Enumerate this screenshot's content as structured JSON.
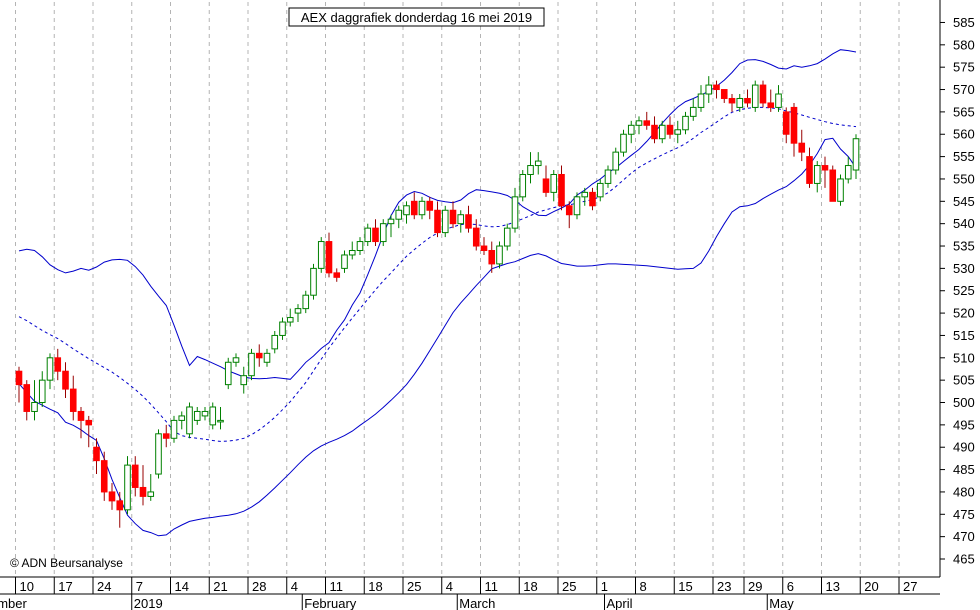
{
  "chart_data": {
    "type": "candlestick",
    "title": "AEX daggrafiek donderdag 16 mei 2019",
    "copyright": "© ADN Beursanalyse",
    "ylim": [
      462,
      588
    ],
    "y_ticks": [
      465,
      470,
      475,
      480,
      485,
      490,
      495,
      500,
      505,
      510,
      515,
      520,
      525,
      530,
      535,
      540,
      545,
      550,
      555,
      560,
      565,
      570,
      575,
      580,
      585
    ],
    "x_ticks": [
      {
        "label": "10",
        "day": 0
      },
      {
        "label": "17",
        "day": 5
      },
      {
        "label": "24",
        "day": 10
      },
      {
        "label": "7",
        "day": 15
      },
      {
        "label": "14",
        "day": 20
      },
      {
        "label": "21",
        "day": 25
      },
      {
        "label": "28",
        "day": 30
      },
      {
        "label": "4",
        "day": 35
      },
      {
        "label": "11",
        "day": 40
      },
      {
        "label": "18",
        "day": 45
      },
      {
        "label": "25",
        "day": 50
      },
      {
        "label": "4",
        "day": 55
      },
      {
        "label": "11",
        "day": 60
      },
      {
        "label": "18",
        "day": 65
      },
      {
        "label": "25",
        "day": 70
      },
      {
        "label": "1",
        "day": 75
      },
      {
        "label": "8",
        "day": 80
      },
      {
        "label": "15",
        "day": 85
      },
      {
        "label": "23",
        "day": 90
      },
      {
        "label": "29",
        "day": 94
      },
      {
        "label": "6",
        "day": 99
      },
      {
        "label": "13",
        "day": 104
      },
      {
        "label": "20",
        "day": 109
      },
      {
        "label": "27",
        "day": 114
      }
    ],
    "month_labels": [
      {
        "label": "ember",
        "day": 0
      },
      {
        "label": "2019",
        "day": 15
      },
      {
        "label": "February",
        "day": 37
      },
      {
        "label": "March",
        "day": 57
      },
      {
        "label": "April",
        "day": 76
      },
      {
        "label": "May",
        "day": 97
      }
    ],
    "up_color": "#008000",
    "down_color": "#ff0000",
    "band_color": "#0000cc",
    "grid_color": "#b4b4b4",
    "candles": [
      [
        507,
        508,
        500,
        504
      ],
      [
        504,
        505,
        496,
        498
      ],
      [
        498,
        505,
        496,
        500
      ],
      [
        500,
        507,
        499,
        505
      ],
      [
        505,
        511,
        503,
        510
      ],
      [
        510,
        512,
        505,
        507
      ],
      [
        507,
        509,
        501,
        503
      ],
      [
        503,
        506,
        496,
        498
      ],
      [
        498,
        499,
        492,
        496
      ],
      [
        496,
        497,
        490,
        495
      ],
      [
        490,
        492,
        484,
        487
      ],
      [
        487,
        489,
        478,
        480
      ],
      [
        480,
        482,
        476,
        478
      ],
      [
        478,
        480,
        472,
        476
      ],
      [
        476,
        488,
        475,
        486
      ],
      [
        486,
        488,
        479,
        481
      ],
      [
        481,
        486,
        477,
        479
      ],
      [
        479,
        484,
        478,
        480
      ],
      [
        484,
        494,
        483,
        493
      ],
      [
        493,
        495,
        490,
        492
      ],
      [
        492,
        497,
        491,
        496
      ],
      [
        496,
        498,
        494,
        497
      ],
      [
        493,
        500,
        492,
        499
      ],
      [
        496,
        499,
        495,
        498
      ],
      [
        497,
        499,
        496,
        498
      ],
      [
        495,
        500,
        494,
        499
      ],
      [
        496,
        499,
        494,
        496
      ],
      [
        504,
        510,
        503,
        509
      ],
      [
        509,
        511,
        508,
        510
      ],
      [
        504,
        508,
        502,
        506
      ],
      [
        506,
        512,
        505,
        511
      ],
      [
        511,
        513,
        508,
        510
      ],
      [
        509,
        512,
        508,
        511
      ],
      [
        512,
        516,
        511,
        515
      ],
      [
        515,
        519,
        514,
        518
      ],
      [
        518,
        521,
        517,
        519
      ],
      [
        520,
        522,
        518,
        521
      ],
      [
        521,
        525,
        520,
        524
      ],
      [
        524,
        531,
        523,
        530
      ],
      [
        530,
        537,
        529,
        536
      ],
      [
        536,
        538,
        528,
        529
      ],
      [
        529,
        530,
        527,
        528
      ],
      [
        530,
        534,
        529,
        533
      ],
      [
        533,
        536,
        532,
        534
      ],
      [
        534,
        537,
        533,
        536
      ],
      [
        536,
        540,
        535,
        539
      ],
      [
        539,
        541,
        535,
        536
      ],
      [
        536,
        541,
        535,
        540
      ],
      [
        540,
        542,
        537,
        541
      ],
      [
        541,
        544,
        539,
        543
      ],
      [
        542,
        545,
        540,
        544
      ],
      [
        545,
        547,
        541,
        542
      ],
      [
        542,
        546,
        541,
        545
      ],
      [
        545,
        546,
        541,
        543
      ],
      [
        543,
        545,
        537,
        538
      ],
      [
        538,
        544,
        537,
        543
      ],
      [
        543,
        545,
        539,
        540
      ],
      [
        540,
        543,
        538,
        542
      ],
      [
        542,
        544,
        538,
        539
      ],
      [
        539,
        541,
        534,
        535
      ],
      [
        535,
        537,
        533,
        534
      ],
      [
        534,
        536,
        529,
        531
      ],
      [
        531,
        536,
        530,
        535
      ],
      [
        535,
        540,
        534,
        539
      ],
      [
        539,
        548,
        538,
        546
      ],
      [
        546,
        552,
        545,
        551
      ],
      [
        551,
        556,
        549,
        553
      ],
      [
        553,
        556,
        551,
        554
      ],
      [
        550,
        553,
        546,
        547
      ],
      [
        547,
        552,
        545,
        551
      ],
      [
        551,
        553,
        543,
        544
      ],
      [
        544,
        545,
        539,
        542
      ],
      [
        542,
        547,
        541,
        546
      ],
      [
        546,
        548,
        544,
        547
      ],
      [
        547,
        548,
        543,
        544
      ],
      [
        546,
        550,
        545,
        549
      ],
      [
        549,
        553,
        548,
        552
      ],
      [
        552,
        557,
        551,
        556
      ],
      [
        556,
        561,
        555,
        560
      ],
      [
        560,
        563,
        558,
        562
      ],
      [
        562,
        564,
        560,
        563
      ],
      [
        563,
        565,
        561,
        562
      ],
      [
        562,
        564,
        558,
        559
      ],
      [
        559,
        563,
        558,
        562
      ],
      [
        562,
        564,
        559,
        560
      ],
      [
        560,
        563,
        558,
        561
      ],
      [
        561,
        565,
        560,
        564
      ],
      [
        564,
        568,
        563,
        566
      ],
      [
        566,
        571,
        565,
        569
      ],
      [
        569,
        573,
        567,
        571
      ],
      [
        571,
        572,
        568,
        570
      ],
      [
        570,
        570,
        567,
        568
      ],
      [
        568,
        569,
        565,
        567
      ],
      [
        566,
        569,
        565,
        568
      ],
      [
        568,
        570,
        566,
        567
      ],
      [
        566,
        572,
        565,
        571
      ],
      [
        571,
        572,
        566,
        567
      ],
      [
        567,
        570,
        565,
        566
      ],
      [
        566,
        571,
        565,
        569
      ],
      [
        565,
        566,
        558,
        560
      ],
      [
        566,
        567,
        555,
        558
      ],
      [
        558,
        561,
        554,
        556
      ],
      [
        555,
        557,
        548,
        549
      ],
      [
        549,
        554,
        547,
        553
      ],
      [
        553,
        555,
        548,
        552
      ],
      [
        552,
        553,
        545,
        545
      ],
      [
        545,
        551,
        544,
        550
      ],
      [
        550,
        555,
        549,
        553
      ],
      [
        552,
        560,
        550,
        559
      ]
    ],
    "sma20": [
      519.2,
      518.3,
      517.2,
      516.1,
      515.2,
      514.3,
      513.2,
      512.0,
      510.9,
      509.8,
      508.8,
      507.8,
      506.8,
      505.6,
      504.3,
      502.9,
      501.4,
      499.6,
      497.7,
      495.7,
      493.5,
      492.6,
      492.2,
      492.0,
      491.8,
      491.5,
      491.3,
      491.4,
      491.6,
      492.0,
      492.8,
      493.9,
      495.2,
      496.7,
      498.4,
      500.2,
      502.3,
      504.5,
      507.1,
      509.7,
      512.2,
      514.5,
      516.7,
      518.9,
      521.0,
      523.1,
      525.2,
      527.2,
      529.0,
      530.9,
      532.7,
      534.2,
      535.6,
      536.9,
      537.9,
      538.7,
      539.3,
      539.8,
      540.0,
      539.8,
      539.5,
      539.3,
      539.4,
      539.8,
      540.4,
      541.1,
      541.8,
      542.6,
      543.1,
      543.6,
      544.0,
      544.2,
      544.6,
      545.0,
      545.4,
      546.0,
      546.9,
      548.3,
      549.8,
      551.3,
      552.6,
      553.6,
      554.5,
      555.4,
      556.2,
      557.0,
      557.9,
      559.1,
      560.4,
      561.5,
      562.7,
      563.9,
      564.9,
      565.5,
      565.8,
      566.0,
      566.0,
      565.9,
      565.7,
      565.2,
      564.8,
      564.3,
      563.8,
      563.3,
      562.8,
      562.4,
      562.1,
      561.9,
      561.7
    ],
    "upper_band": [
      533.9,
      534.3,
      534.0,
      532.6,
      530.8,
      529.7,
      529.0,
      529.4,
      530.0,
      529.6,
      530.3,
      531.4,
      531.9,
      532.0,
      531.8,
      530.4,
      528.5,
      526.0,
      523.8,
      521.7,
      517.3,
      512.6,
      508.3,
      510.3,
      509.6,
      508.8,
      508.0,
      507.1,
      506.4,
      505.7,
      505.4,
      505.3,
      505.4,
      505.6,
      505.4,
      505.2,
      507.0,
      509.0,
      510.4,
      512.1,
      513.4,
      516.2,
      518.5,
      521.8,
      524.5,
      528.6,
      532.9,
      537.6,
      541.8,
      544.8,
      546.4,
      547.2,
      546.8,
      545.9,
      545.2,
      544.9,
      544.7,
      545.3,
      546.7,
      547.6,
      547.4,
      547.1,
      546.8,
      546.3,
      545.3,
      543.8,
      542.8,
      541.9,
      541.8,
      542.7,
      543.5,
      544.4,
      546.4,
      547.5,
      548.9,
      550.0,
      551.4,
      552.5,
      553.9,
      555.3,
      556.6,
      558.4,
      560.4,
      562.5,
      564.4,
      566.1,
      567.3,
      568.0,
      568.8,
      569.6,
      570.7,
      572.1,
      573.8,
      575.8,
      576.6,
      576.7,
      576.3,
      575.6,
      574.8,
      574.6,
      575.3,
      575.0,
      575.3,
      575.8,
      576.8,
      578.0,
      578.9,
      578.7,
      578.4
    ],
    "lower_band": [
      504.2,
      502.2,
      500.3,
      499.4,
      498.5,
      497.7,
      495.6,
      494.9,
      493.9,
      492.6,
      491.5,
      487.4,
      482.8,
      478.7,
      474.8,
      472.9,
      471.4,
      470.9,
      470.2,
      470.4,
      471.7,
      472.6,
      473.4,
      473.8,
      474.1,
      474.3,
      474.6,
      474.8,
      475.1,
      475.7,
      476.6,
      477.8,
      479.3,
      480.9,
      482.6,
      484.3,
      486.1,
      487.8,
      489.2,
      490.3,
      491.1,
      491.8,
      492.6,
      493.6,
      494.9,
      496.1,
      497.4,
      498.9,
      500.5,
      502.2,
      504.0,
      506.3,
      508.8,
      511.6,
      514.4,
      517.3,
      520.1,
      522.3,
      524.2,
      526.2,
      528.0,
      529.9,
      530.5,
      531.1,
      531.5,
      532.2,
      532.9,
      533.3,
      532.8,
      531.9,
      531.1,
      530.8,
      530.5,
      530.5,
      530.6,
      530.8,
      531.0,
      531.0,
      530.9,
      530.8,
      530.7,
      530.6,
      530.4,
      530.2,
      530.0,
      529.8,
      529.9,
      530.0,
      531.2,
      533.9,
      537.1,
      540.0,
      542.6,
      543.8,
      544.0,
      544.5,
      545.6,
      546.6,
      547.5,
      548.3,
      549.6,
      551.1,
      553.1,
      555.7,
      558.8,
      559.1,
      556.7,
      555.0,
      552.5
    ]
  }
}
